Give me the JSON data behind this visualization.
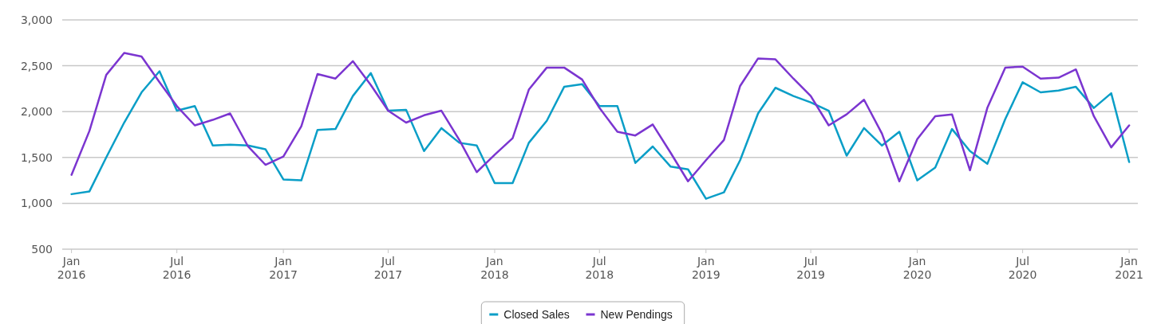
{
  "chart_data": {
    "type": "line",
    "x": [
      "2016-01",
      "2016-02",
      "2016-03",
      "2016-04",
      "2016-05",
      "2016-06",
      "2016-07",
      "2016-08",
      "2016-09",
      "2016-10",
      "2016-11",
      "2016-12",
      "2017-01",
      "2017-02",
      "2017-03",
      "2017-04",
      "2017-05",
      "2017-06",
      "2017-07",
      "2017-08",
      "2017-09",
      "2017-10",
      "2017-11",
      "2017-12",
      "2018-01",
      "2018-02",
      "2018-03",
      "2018-04",
      "2018-05",
      "2018-06",
      "2018-07",
      "2018-08",
      "2018-09",
      "2018-10",
      "2018-11",
      "2018-12",
      "2019-01",
      "2019-02",
      "2019-03",
      "2019-04",
      "2019-05",
      "2019-06",
      "2019-07",
      "2019-08",
      "2019-09",
      "2019-10",
      "2019-11",
      "2019-12",
      "2020-01",
      "2020-02",
      "2020-03",
      "2020-04",
      "2020-05",
      "2020-06",
      "2020-07",
      "2020-08",
      "2020-09",
      "2020-10",
      "2020-11",
      "2020-12",
      "2021-01"
    ],
    "series": [
      {
        "name": "Closed Sales",
        "color": "#0a9ec7",
        "values": [
          1100,
          1130,
          1500,
          1880,
          2210,
          2440,
          2010,
          2060,
          1630,
          1640,
          1630,
          1590,
          1260,
          1250,
          1800,
          1810,
          2170,
          2420,
          2010,
          2020,
          1570,
          1820,
          1660,
          1630,
          1220,
          1220,
          1660,
          1900,
          2270,
          2300,
          2060,
          2060,
          1440,
          1620,
          1400,
          1370,
          1050,
          1120,
          1470,
          1980,
          2260,
          2170,
          2100,
          2010,
          1520,
          1820,
          1630,
          1780,
          1250,
          1390,
          1810,
          1570,
          1430,
          1920,
          2320,
          2210,
          2230,
          2270,
          2040,
          2200,
          1450
        ]
      },
      {
        "name": "New Pendings",
        "color": "#7b35d0",
        "values": [
          1310,
          1790,
          2400,
          2640,
          2600,
          2320,
          2060,
          1850,
          1910,
          1980,
          1620,
          1420,
          1510,
          1840,
          2410,
          2360,
          2550,
          2290,
          2010,
          1880,
          1960,
          2010,
          1690,
          1340,
          1530,
          1710,
          2240,
          2480,
          2480,
          2350,
          2040,
          1780,
          1740,
          1860,
          1550,
          1240,
          1470,
          1690,
          2280,
          2580,
          2570,
          2360,
          2170,
          1850,
          1970,
          2130,
          1760,
          1240,
          1700,
          1950,
          1970,
          1360,
          2040,
          2480,
          2490,
          2360,
          2370,
          2460,
          1950,
          1610,
          1850
        ]
      }
    ],
    "xlim": [
      "2015-12-16",
      "2021-01-16"
    ],
    "xticks": [
      {
        "value": "2016-01",
        "label": "Jan\n2016"
      },
      {
        "value": "2016-07",
        "label": "Jul\n2016"
      },
      {
        "value": "2017-01",
        "label": "Jan\n2017"
      },
      {
        "value": "2017-07",
        "label": "Jul\n2017"
      },
      {
        "value": "2018-01",
        "label": "Jan\n2018"
      },
      {
        "value": "2018-07",
        "label": "Jul\n2018"
      },
      {
        "value": "2019-01",
        "label": "Jan\n2019"
      },
      {
        "value": "2019-07",
        "label": "Jul\n2019"
      },
      {
        "value": "2020-01",
        "label": "Jan\n2020"
      },
      {
        "value": "2020-07",
        "label": "Jul\n2020"
      },
      {
        "value": "2021-01",
        "label": "Jan\n2021"
      }
    ],
    "ylim": [
      500,
      3000
    ],
    "yticks": [
      {
        "value": 500,
        "label": "500"
      },
      {
        "value": 1000,
        "label": "1,000"
      },
      {
        "value": 1500,
        "label": "1,500"
      },
      {
        "value": 2000,
        "label": "2,000"
      },
      {
        "value": 2500,
        "label": "2,500"
      },
      {
        "value": 3000,
        "label": "3,000"
      }
    ],
    "grid": "y",
    "legend": "bottom",
    "marker": "none",
    "line_style": "solid"
  }
}
